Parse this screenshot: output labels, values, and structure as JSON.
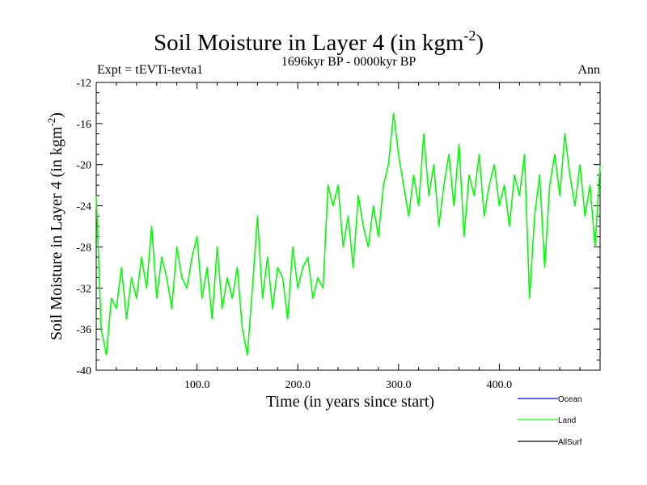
{
  "chart_data": {
    "type": "line",
    "title": "Soil Moisture in Layer 4 (in kgm",
    "title_sup": "-2",
    "title_close": ")",
    "experiment": "Expt = tEVTi-tevta1",
    "period": "1696kyr BP - 0000kyr BP",
    "season": "Ann",
    "xlabel": "Time (in years since start)",
    "ylabel": "Soil Moisture in Layer 4 (in kgm",
    "ylabel_sup": "-2",
    "ylabel_close": ")",
    "xlim": [
      0,
      500
    ],
    "ylim": [
      -40,
      -12
    ],
    "xticks": [
      100,
      200,
      300,
      400
    ],
    "xtick_labels": [
      "100.0",
      "200.0",
      "300.0",
      "400.0"
    ],
    "yticks": [
      -40,
      -36,
      -32,
      -28,
      -24,
      -20,
      -16,
      -12
    ],
    "ytick_labels": [
      "-40",
      "-36",
      "-32",
      "-28",
      "-24",
      "-20",
      "-16",
      "-12"
    ],
    "legend_position": "bottom-right",
    "legend": [
      {
        "name": "Ocean",
        "color": "#0000ff"
      },
      {
        "name": "Land",
        "color": "#00ff00"
      },
      {
        "name": "AllSurf",
        "color": "#000000"
      }
    ],
    "series": [
      {
        "name": "Land",
        "color": "#00ff00",
        "x": [
          0,
          5,
          10,
          15,
          20,
          25,
          30,
          35,
          40,
          45,
          50,
          55,
          60,
          65,
          70,
          75,
          80,
          85,
          90,
          95,
          100,
          105,
          110,
          115,
          120,
          125,
          130,
          135,
          140,
          145,
          150,
          155,
          160,
          165,
          170,
          175,
          180,
          185,
          190,
          195,
          200,
          205,
          210,
          215,
          220,
          225,
          230,
          235,
          240,
          245,
          250,
          255,
          260,
          265,
          270,
          275,
          280,
          285,
          290,
          295,
          300,
          305,
          310,
          315,
          320,
          325,
          330,
          335,
          340,
          345,
          350,
          355,
          360,
          365,
          370,
          375,
          380,
          385,
          390,
          395,
          400,
          405,
          410,
          415,
          420,
          425,
          430,
          435,
          440,
          445,
          450,
          455,
          460,
          465,
          470,
          475,
          480,
          485,
          490,
          495,
          500
        ],
        "values": [
          -23,
          -36,
          -38.5,
          -33,
          -34,
          -30,
          -35,
          -31,
          -33,
          -29,
          -32,
          -26,
          -33,
          -29,
          -31,
          -34,
          -28,
          -31,
          -32,
          -29,
          -27,
          -33,
          -30,
          -35,
          -28,
          -34,
          -31,
          -33,
          -30,
          -36,
          -38.5,
          -32,
          -25,
          -33,
          -29,
          -34,
          -30,
          -31,
          -35,
          -28,
          -32,
          -30,
          -29,
          -33,
          -31,
          -32,
          -22,
          -24,
          -22,
          -28,
          -25,
          -30,
          -23,
          -26,
          -28,
          -24,
          -27,
          -22,
          -20,
          -15,
          -19,
          -22,
          -25,
          -21,
          -24,
          -17,
          -23,
          -20,
          -26,
          -22,
          -19,
          -24,
          -18,
          -27,
          -21,
          -23,
          -19,
          -25,
          -22,
          -20,
          -24,
          -22,
          -26,
          -21,
          -23,
          -19,
          -33,
          -25,
          -21,
          -30,
          -22,
          -19,
          -23,
          -17,
          -21,
          -24,
          -20,
          -25,
          -22,
          -28,
          -20
        ]
      }
    ]
  }
}
